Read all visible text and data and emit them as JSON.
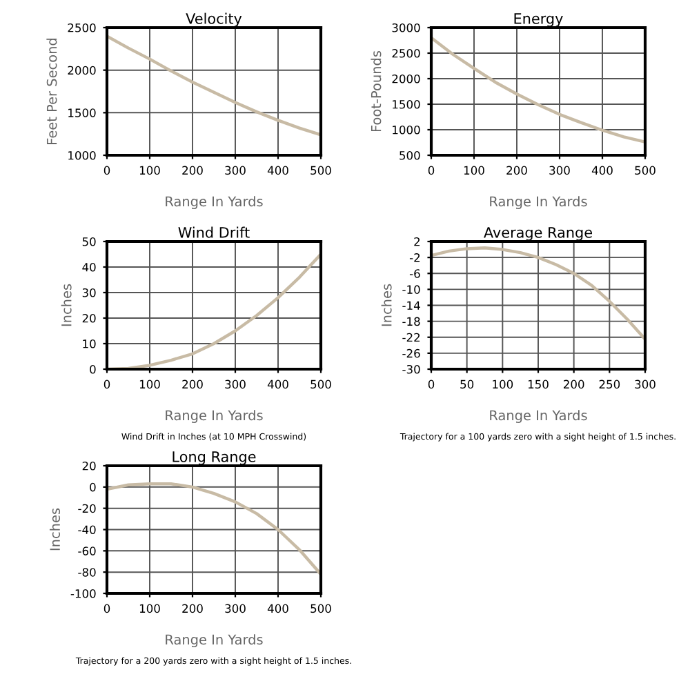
{
  "chart_data": [
    {
      "type": "line",
      "title": "Velocity",
      "xlabel": "Range In Yards",
      "ylabel": "Feet Per Second",
      "x": [
        0,
        50,
        100,
        150,
        200,
        250,
        300,
        350,
        400,
        450,
        500
      ],
      "series": [
        {
          "color": "#c8bba5",
          "values": [
            2400,
            2260,
            2130,
            1990,
            1860,
            1740,
            1620,
            1510,
            1410,
            1320,
            1240
          ]
        }
      ],
      "xlim": [
        0,
        500
      ],
      "xticks": [
        0,
        100,
        200,
        300,
        400,
        500
      ],
      "ylim": [
        1000,
        2500
      ],
      "yticks": [
        1000,
        1500,
        2000,
        2500
      ],
      "grid": true,
      "marker": "none",
      "line_style": "solid"
    },
    {
      "type": "line",
      "title": "Energy",
      "xlabel": "Range In Yards",
      "ylabel": "Foot-Pounds",
      "x": [
        0,
        50,
        100,
        150,
        200,
        250,
        300,
        350,
        400,
        450,
        500
      ],
      "series": [
        {
          "color": "#c8bba5",
          "values": [
            2800,
            2480,
            2200,
            1930,
            1700,
            1490,
            1300,
            1140,
            990,
            860,
            760
          ]
        }
      ],
      "xlim": [
        0,
        500
      ],
      "xticks": [
        0,
        100,
        200,
        300,
        400,
        500
      ],
      "ylim": [
        500,
        3000
      ],
      "yticks": [
        500,
        1000,
        1500,
        2000,
        2500,
        3000
      ],
      "grid": true,
      "marker": "none",
      "line_style": "solid"
    },
    {
      "type": "line",
      "title": "Wind Drift",
      "xlabel": "Range In Yards",
      "ylabel": "Inches",
      "annotations": [
        "Wind Drift in Inches (at 10 MPH Crosswind)"
      ],
      "x": [
        0,
        50,
        100,
        150,
        200,
        250,
        300,
        350,
        400,
        450,
        500
      ],
      "series": [
        {
          "color": "#c8bba5",
          "values": [
            0,
            0.3,
            1.5,
            3.5,
            6,
            10,
            15,
            21,
            28,
            36,
            45
          ]
        }
      ],
      "xlim": [
        0,
        500
      ],
      "xticks": [
        0,
        100,
        200,
        300,
        400,
        500
      ],
      "ylim": [
        0,
        50
      ],
      "yticks": [
        0,
        10,
        20,
        30,
        40,
        50
      ],
      "grid": true,
      "marker": "none",
      "line_style": "solid"
    },
    {
      "type": "line",
      "title": "Average Range",
      "xlabel": "Range In Yards",
      "ylabel": "Inches",
      "annotations": [
        "Trajectory for a 100 yards zero with a sight height of 1.5 inches."
      ],
      "x": [
        0,
        25,
        50,
        75,
        100,
        125,
        150,
        175,
        200,
        225,
        250,
        275,
        300
      ],
      "series": [
        {
          "color": "#c8bba5",
          "values": [
            -1.5,
            -0.4,
            0.2,
            0.4,
            0,
            -0.8,
            -2,
            -3.8,
            -6,
            -9,
            -13,
            -17.5,
            -22.5
          ]
        }
      ],
      "xlim": [
        0,
        300
      ],
      "xticks": [
        0,
        50,
        100,
        150,
        200,
        250,
        300
      ],
      "ylim": [
        -30,
        2
      ],
      "yticks": [
        -30,
        -26,
        -22,
        -18,
        -14,
        -10,
        -6,
        -2,
        2
      ],
      "grid": true,
      "marker": "none",
      "line_style": "solid"
    },
    {
      "type": "line",
      "title": "Long Range",
      "xlabel": "Range In Yards",
      "ylabel": "Inches",
      "annotations": [
        "Trajectory for a 200 yards zero with a sight height of 1.5 inches."
      ],
      "x": [
        0,
        50,
        100,
        150,
        200,
        250,
        300,
        350,
        400,
        450,
        500
      ],
      "series": [
        {
          "color": "#c8bba5",
          "values": [
            -2,
            2,
            3,
            3,
            0,
            -6,
            -14,
            -25,
            -40,
            -59,
            -82
          ]
        }
      ],
      "xlim": [
        0,
        500
      ],
      "xticks": [
        0,
        100,
        200,
        300,
        400,
        500
      ],
      "ylim": [
        -100,
        20
      ],
      "yticks": [
        -100,
        -80,
        -60,
        -40,
        -20,
        0,
        20
      ],
      "grid": true,
      "marker": "none",
      "line_style": "solid"
    }
  ]
}
